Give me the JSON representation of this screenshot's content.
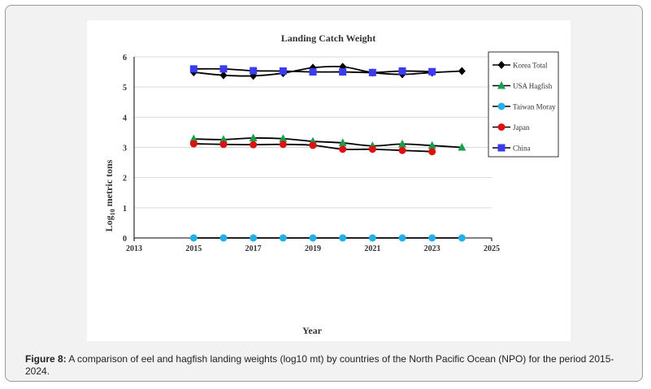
{
  "caption": {
    "label": "Figure 8:",
    "text": " A comparison of eel and hagfish landing weights (log10 mt) by countries of the North Pacific Ocean (NPO) for the period 2015-2024."
  },
  "chart_data": {
    "type": "line",
    "title": "Landing Catch Weight",
    "xlabel": "Year",
    "ylabel_main": "Log",
    "ylabel_sub": "10",
    "ylabel_rest": " metric tons",
    "xlim": [
      2013,
      2025
    ],
    "ylim": [
      0,
      6
    ],
    "xticks": [
      2013,
      2015,
      2017,
      2019,
      2021,
      2023,
      2025
    ],
    "yticks": [
      0,
      1,
      2,
      3,
      4,
      5,
      6
    ],
    "grid": true,
    "legend_position": "top-right",
    "series": [
      {
        "name": "Korea Total",
        "color": "#000000",
        "marker": "diamond",
        "x": [
          2015,
          2016,
          2017,
          2018,
          2019,
          2020,
          2021,
          2022,
          2023,
          2024
        ],
        "values": [
          5.49,
          5.39,
          5.37,
          5.46,
          5.64,
          5.67,
          5.48,
          5.42,
          5.48,
          5.53
        ]
      },
      {
        "name": "USA Hagfish",
        "color": "#1a9e4b",
        "marker": "triangle",
        "x": [
          2015,
          2016,
          2017,
          2018,
          2019,
          2020,
          2021,
          2022,
          2023,
          2024
        ],
        "values": [
          3.28,
          3.26,
          3.31,
          3.29,
          3.2,
          3.15,
          3.05,
          3.11,
          3.06,
          3.0
        ]
      },
      {
        "name": "Taiwan Moray",
        "color": "#22b0e6",
        "marker": "circle",
        "x": [
          2015,
          2016,
          2017,
          2018,
          2019,
          2020,
          2021,
          2022,
          2023,
          2024
        ],
        "values": [
          0,
          0,
          0,
          0,
          0,
          0,
          0,
          0,
          0,
          0
        ]
      },
      {
        "name": "Japan",
        "color": "#dd1111",
        "marker": "circle",
        "x": [
          2015,
          2016,
          2017,
          2018,
          2019,
          2020,
          2021,
          2022,
          2023
        ],
        "values": [
          3.12,
          3.1,
          3.09,
          3.1,
          3.07,
          2.94,
          2.94,
          2.9,
          2.86
        ]
      },
      {
        "name": "China",
        "color": "#3b3bf0",
        "marker": "square",
        "x": [
          2015,
          2016,
          2017,
          2018,
          2019,
          2020,
          2021,
          2022,
          2023
        ],
        "values": [
          5.6,
          5.6,
          5.54,
          5.53,
          5.5,
          5.5,
          5.48,
          5.53,
          5.51
        ]
      }
    ]
  }
}
